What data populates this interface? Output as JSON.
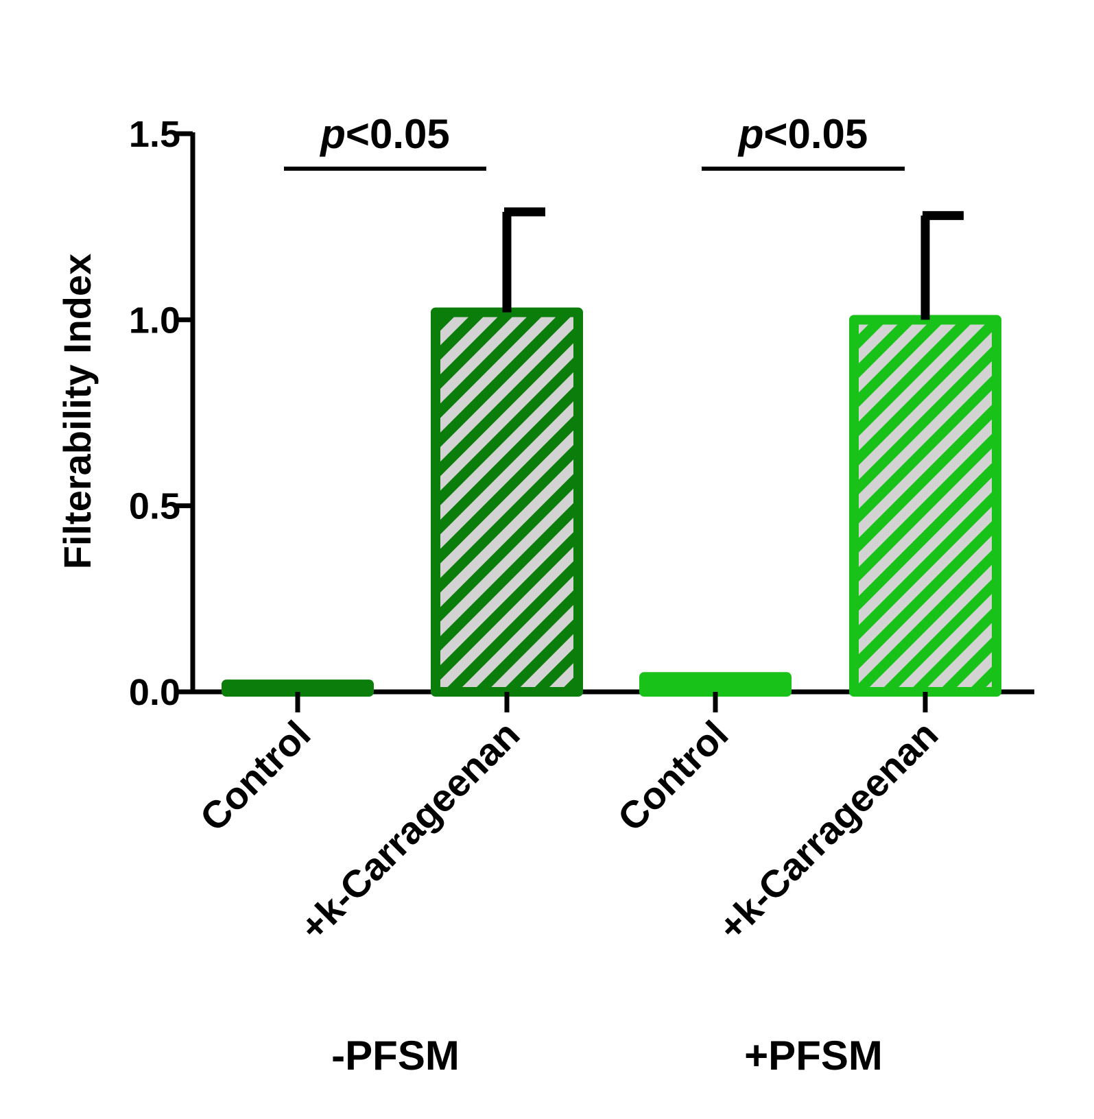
{
  "chart_data": {
    "type": "bar",
    "ylabel": "Filterability Index",
    "ylim": [
      0,
      1.5
    ],
    "yticks": [
      "0.0",
      "0.5",
      "1.0",
      "1.5"
    ],
    "categories": [
      "Control",
      "+k-Carrageenan",
      "Control",
      "+k-Carrageenan"
    ],
    "groups": [
      {
        "label": "-PFSM",
        "categories": [
          0,
          1
        ]
      },
      {
        "label": "+PFSM",
        "categories": [
          2,
          3
        ]
      }
    ],
    "values": [
      0.02,
      1.02,
      0.04,
      1.0
    ],
    "errors": [
      0,
      0.27,
      0,
      0.28
    ],
    "bar_colors": [
      "#0a7d0a",
      "#0a7d0a",
      "#19c219",
      "#19c219"
    ],
    "hatched": [
      false,
      true,
      false,
      true
    ],
    "hatch_color": "#d3d3d3",
    "significance": [
      {
        "from": 0,
        "to": 1,
        "p_prefix": "p",
        "text": "<0.05"
      },
      {
        "from": 2,
        "to": 3,
        "p_prefix": "p",
        "text": "<0.05"
      }
    ],
    "grid": false,
    "legend": "none"
  }
}
